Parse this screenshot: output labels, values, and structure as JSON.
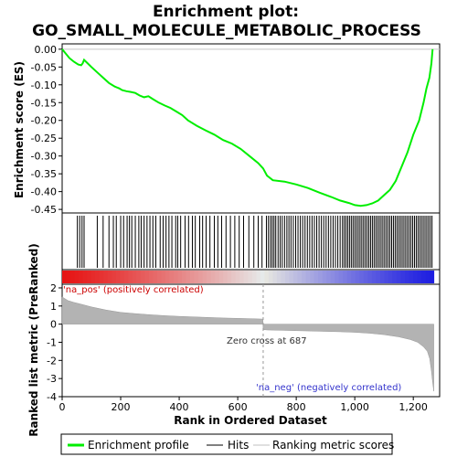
{
  "chart_data": {
    "type": "line",
    "title": "Enrichment plot:",
    "subtitle": "GO_SMALL_MOLECULE_METABOLIC_PROCESS",
    "xlabel": "Rank in Ordered Dataset",
    "ylabel_es": "Enrichment score (ES)",
    "ylabel_metric": "Ranked list metric (PreRanked)",
    "x_ticks": [
      0,
      200,
      400,
      600,
      800,
      1000,
      1200
    ],
    "x_tick_labels": [
      "0",
      "200",
      "400",
      "600",
      "800",
      "1,000",
      "1,200"
    ],
    "xlim": [
      0,
      1290
    ],
    "es_ylim": [
      -0.46,
      0.015
    ],
    "es_ticks": [
      0.0,
      -0.05,
      -0.1,
      -0.15,
      -0.2,
      -0.25,
      -0.3,
      -0.35,
      -0.4,
      -0.45
    ],
    "es_tick_labels": [
      "0.00",
      "-0.05",
      "-0.10",
      "-0.15",
      "-0.20",
      "-0.25",
      "-0.30",
      "-0.35",
      "-0.40",
      "-0.45"
    ],
    "metric_ylim": [
      -4,
      2.2
    ],
    "metric_ticks": [
      2,
      1,
      0,
      -1,
      -2,
      -3,
      -4
    ],
    "metric_tick_labels": [
      "2",
      "1",
      "0",
      "-1",
      "-2",
      "-3",
      "-4"
    ],
    "n_genes": 1270,
    "zero_cross": 687,
    "zero_cross_label": "Zero cross at 687",
    "pos_label": "'na_pos' (positively correlated)",
    "neg_label": "'na_neg' (negatively correlated)",
    "es_curve": [
      [
        0,
        0.0
      ],
      [
        10,
        -0.01
      ],
      [
        25,
        -0.025
      ],
      [
        40,
        -0.035
      ],
      [
        55,
        -0.043
      ],
      [
        65,
        -0.045
      ],
      [
        70,
        -0.04
      ],
      [
        75,
        -0.03
      ],
      [
        85,
        -0.038
      ],
      [
        100,
        -0.05
      ],
      [
        120,
        -0.065
      ],
      [
        140,
        -0.08
      ],
      [
        160,
        -0.095
      ],
      [
        180,
        -0.105
      ],
      [
        195,
        -0.11
      ],
      [
        205,
        -0.115
      ],
      [
        220,
        -0.118
      ],
      [
        235,
        -0.12
      ],
      [
        250,
        -0.123
      ],
      [
        265,
        -0.13
      ],
      [
        280,
        -0.135
      ],
      [
        295,
        -0.132
      ],
      [
        310,
        -0.14
      ],
      [
        330,
        -0.15
      ],
      [
        350,
        -0.158
      ],
      [
        370,
        -0.165
      ],
      [
        390,
        -0.175
      ],
      [
        410,
        -0.185
      ],
      [
        430,
        -0.2
      ],
      [
        460,
        -0.215
      ],
      [
        490,
        -0.228
      ],
      [
        520,
        -0.24
      ],
      [
        550,
        -0.255
      ],
      [
        580,
        -0.265
      ],
      [
        610,
        -0.28
      ],
      [
        640,
        -0.3
      ],
      [
        670,
        -0.32
      ],
      [
        687,
        -0.335
      ],
      [
        700,
        -0.355
      ],
      [
        720,
        -0.368
      ],
      [
        760,
        -0.372
      ],
      [
        800,
        -0.38
      ],
      [
        840,
        -0.39
      ],
      [
        880,
        -0.403
      ],
      [
        920,
        -0.415
      ],
      [
        950,
        -0.425
      ],
      [
        980,
        -0.432
      ],
      [
        1000,
        -0.438
      ],
      [
        1020,
        -0.44
      ],
      [
        1040,
        -0.438
      ],
      [
        1060,
        -0.433
      ],
      [
        1080,
        -0.425
      ],
      [
        1100,
        -0.41
      ],
      [
        1120,
        -0.395
      ],
      [
        1140,
        -0.37
      ],
      [
        1160,
        -0.33
      ],
      [
        1180,
        -0.29
      ],
      [
        1200,
        -0.24
      ],
      [
        1220,
        -0.2
      ],
      [
        1235,
        -0.15
      ],
      [
        1245,
        -0.11
      ],
      [
        1255,
        -0.08
      ],
      [
        1262,
        -0.04
      ],
      [
        1266,
        0.0
      ]
    ],
    "hit_ranks": [
      52,
      60,
      68,
      75,
      120,
      140,
      160,
      175,
      185,
      200,
      210,
      222,
      230,
      238,
      250,
      262,
      270,
      280,
      290,
      300,
      310,
      320,
      335,
      345,
      355,
      365,
      375,
      388,
      395,
      405,
      420,
      432,
      445,
      455,
      470,
      480,
      492,
      505,
      520,
      532,
      545,
      560,
      575,
      590,
      605,
      620,
      638,
      655,
      670,
      683,
      698,
      705,
      712,
      718,
      724,
      730,
      738,
      745,
      752,
      760,
      768,
      775,
      782,
      790,
      798,
      806,
      814,
      822,
      830,
      838,
      846,
      854,
      862,
      870,
      878,
      886,
      894,
      902,
      910,
      918,
      926,
      934,
      942,
      950,
      958,
      964,
      970,
      976,
      982,
      988,
      994,
      1000,
      1006,
      1012,
      1018,
      1024,
      1030,
      1036,
      1042,
      1048,
      1054,
      1060,
      1066,
      1072,
      1078,
      1084,
      1090,
      1096,
      1102,
      1108,
      1114,
      1120,
      1126,
      1132,
      1138,
      1144,
      1150,
      1156,
      1162,
      1168,
      1174,
      1180,
      1186,
      1192,
      1198,
      1204,
      1210,
      1216,
      1222,
      1228,
      1234,
      1240,
      1246,
      1252,
      1258,
      1264
    ],
    "metric_curve": [
      [
        0,
        1.5
      ],
      [
        5,
        1.45
      ],
      [
        20,
        1.3
      ],
      [
        40,
        1.2
      ],
      [
        60,
        1.12
      ],
      [
        100,
        0.95
      ],
      [
        150,
        0.78
      ],
      [
        200,
        0.65
      ],
      [
        250,
        0.58
      ],
      [
        300,
        0.52
      ],
      [
        350,
        0.47
      ],
      [
        400,
        0.43
      ],
      [
        450,
        0.4
      ],
      [
        500,
        0.37
      ],
      [
        550,
        0.34
      ],
      [
        600,
        0.32
      ],
      [
        650,
        0.3
      ],
      [
        686,
        0.28
      ],
      [
        687,
        -0.3
      ],
      [
        700,
        -0.32
      ],
      [
        750,
        -0.34
      ],
      [
        800,
        -0.36
      ],
      [
        850,
        -0.38
      ],
      [
        900,
        -0.4
      ],
      [
        950,
        -0.42
      ],
      [
        1000,
        -0.45
      ],
      [
        1050,
        -0.5
      ],
      [
        1100,
        -0.58
      ],
      [
        1150,
        -0.7
      ],
      [
        1190,
        -0.85
      ],
      [
        1215,
        -1.0
      ],
      [
        1235,
        -1.25
      ],
      [
        1248,
        -1.5
      ],
      [
        1256,
        -1.9
      ],
      [
        1262,
        -2.6
      ],
      [
        1266,
        -3.2
      ],
      [
        1270,
        -3.7
      ]
    ],
    "colors": {
      "es_line": "#00ee00",
      "hit": "#000000",
      "metric_fill": "#b3b3b3",
      "pos_text": "#cc0000",
      "neg_text": "#3333cc",
      "heat_pos": "#e00000",
      "heat_neg": "#2020c0"
    }
  },
  "legend": {
    "items": [
      {
        "label": "Enrichment profile",
        "icon": "green-line-icon"
      },
      {
        "label": "Hits",
        "icon": "black-line-icon"
      },
      {
        "label": "Ranking metric scores",
        "icon": "gray-line-icon"
      }
    ]
  }
}
